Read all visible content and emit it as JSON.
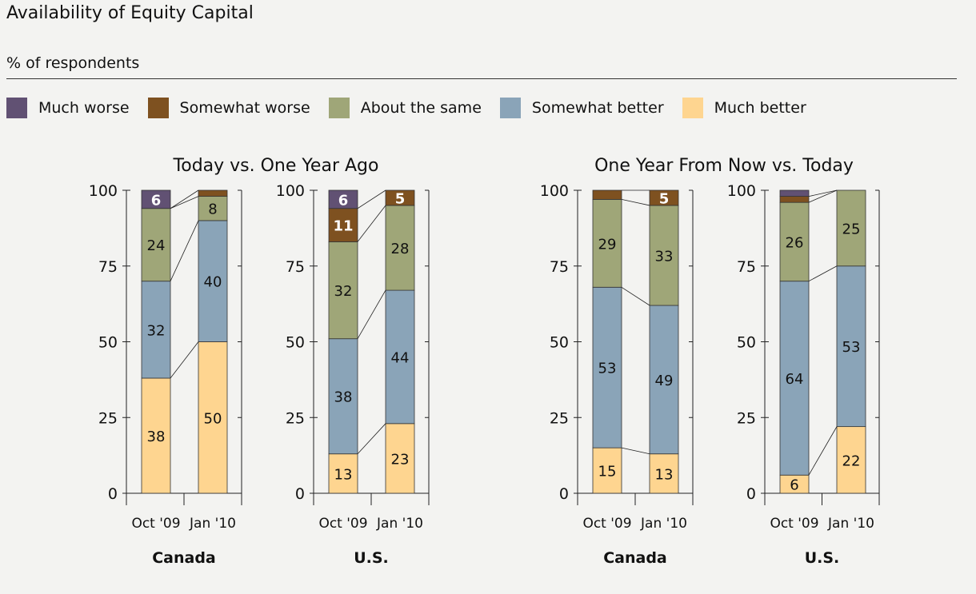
{
  "title": "Availability of Equity Capital",
  "subtitle": "% of respondents",
  "legend": [
    {
      "label": "Much worse",
      "color": "#615173"
    },
    {
      "label": "Somewhat worse",
      "color": "#7e5120"
    },
    {
      "label": "About the same",
      "color": "#9fa678"
    },
    {
      "label": "Somewhat better",
      "color": "#8aa4b8"
    },
    {
      "label": "Much better",
      "color": "#fed590"
    }
  ],
  "chart_data": [
    {
      "type": "bar",
      "stacked": true,
      "title": "Today vs. One Year Ago",
      "ylim": [
        0,
        100
      ],
      "yticks": [
        "0",
        "25",
        "50",
        "75",
        "100"
      ],
      "groups": [
        {
          "name": "Canada",
          "categories": [
            "Oct '09",
            "Jan '10"
          ],
          "series": [
            {
              "name": "Much better",
              "values": [
                38,
                50
              ],
              "labels": [
                "38",
                "50"
              ]
            },
            {
              "name": "Somewhat better",
              "values": [
                32,
                40
              ],
              "labels": [
                "32",
                "40"
              ]
            },
            {
              "name": "About the same",
              "values": [
                24,
                8
              ],
              "labels": [
                "24",
                "8"
              ]
            },
            {
              "name": "Somewhat worse",
              "values": [
                0,
                2
              ],
              "labels": [
                "",
                ""
              ]
            },
            {
              "name": "Much worse",
              "values": [
                6,
                0
              ],
              "labels": [
                "6",
                ""
              ]
            }
          ]
        },
        {
          "name": "U.S.",
          "categories": [
            "Oct '09",
            "Jan '10"
          ],
          "series": [
            {
              "name": "Much better",
              "values": [
                13,
                23
              ],
              "labels": [
                "13",
                "23"
              ]
            },
            {
              "name": "Somewhat better",
              "values": [
                38,
                44
              ],
              "labels": [
                "38",
                "44"
              ]
            },
            {
              "name": "About the same",
              "values": [
                32,
                28
              ],
              "labels": [
                "32",
                "28"
              ]
            },
            {
              "name": "Somewhat worse",
              "values": [
                11,
                5
              ],
              "labels": [
                "11",
                "5"
              ]
            },
            {
              "name": "Much worse",
              "values": [
                6,
                0
              ],
              "labels": [
                "6",
                ""
              ]
            }
          ]
        }
      ]
    },
    {
      "type": "bar",
      "stacked": true,
      "title": "One Year From Now vs. Today",
      "ylim": [
        0,
        100
      ],
      "yticks": [
        "0",
        "25",
        "50",
        "75",
        "100"
      ],
      "groups": [
        {
          "name": "Canada",
          "categories": [
            "Oct '09",
            "Jan '10"
          ],
          "series": [
            {
              "name": "Much better",
              "values": [
                15,
                13
              ],
              "labels": [
                "15",
                "13"
              ]
            },
            {
              "name": "Somewhat better",
              "values": [
                53,
                49
              ],
              "labels": [
                "53",
                "49"
              ]
            },
            {
              "name": "About the same",
              "values": [
                29,
                33
              ],
              "labels": [
                "29",
                "33"
              ]
            },
            {
              "name": "Somewhat worse",
              "values": [
                3,
                5
              ],
              "labels": [
                "",
                "5"
              ]
            },
            {
              "name": "Much worse",
              "values": [
                0,
                0
              ],
              "labels": [
                "",
                ""
              ]
            }
          ]
        },
        {
          "name": "U.S.",
          "categories": [
            "Oct '09",
            "Jan '10"
          ],
          "series": [
            {
              "name": "Much better",
              "values": [
                6,
                22
              ],
              "labels": [
                "6",
                "22"
              ]
            },
            {
              "name": "Somewhat better",
              "values": [
                64,
                53
              ],
              "labels": [
                "64",
                "53"
              ]
            },
            {
              "name": "About the same",
              "values": [
                26,
                25
              ],
              "labels": [
                "26",
                "25"
              ]
            },
            {
              "name": "Somewhat worse",
              "values": [
                2,
                0
              ],
              "labels": [
                "",
                ""
              ]
            },
            {
              "name": "Much worse",
              "values": [
                2,
                0
              ],
              "labels": [
                "",
                ""
              ]
            }
          ]
        }
      ]
    }
  ]
}
